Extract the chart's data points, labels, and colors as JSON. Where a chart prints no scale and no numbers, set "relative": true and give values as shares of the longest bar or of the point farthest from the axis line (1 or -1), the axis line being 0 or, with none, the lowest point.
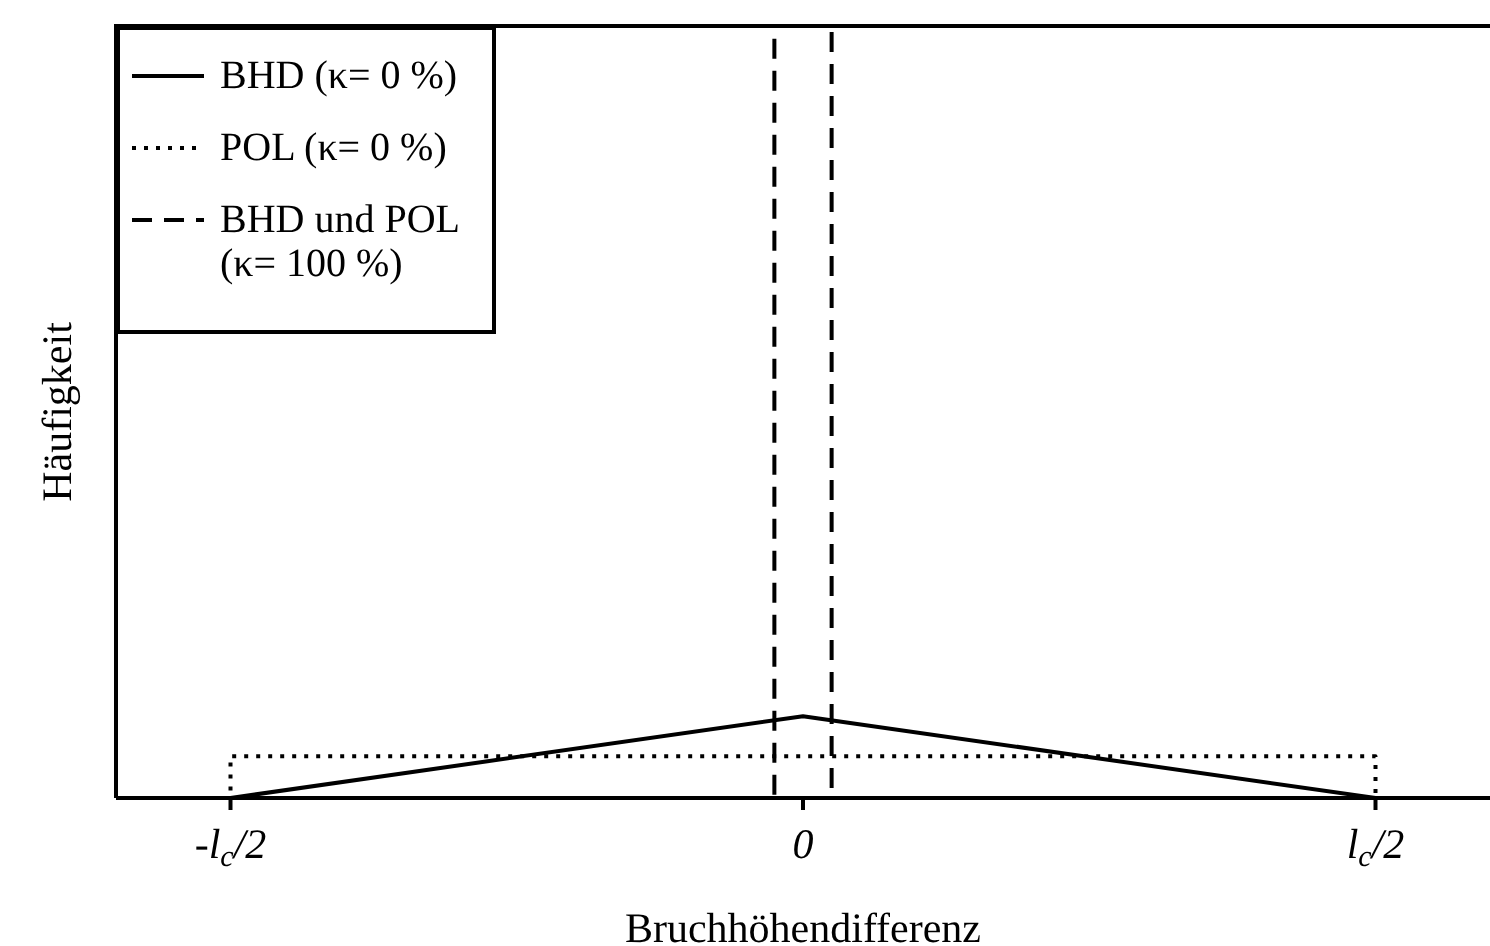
{
  "chart_data": {
    "type": "line",
    "relative": true,
    "xlabel": "Bruchhöhendifferenz",
    "ylabel": "Häufigkeit",
    "categories": [
      null,
      null,
      null,
      null,
      "-l$_{c}$/2",
      null,
      null,
      null,
      null,
      null,
      null,
      null,
      null,
      null,
      null,
      null,
      null,
      null,
      null,
      null,
      null,
      null,
      null,
      null,
      "0",
      null,
      null,
      null,
      null,
      null,
      null,
      null,
      null,
      null,
      null,
      null,
      null,
      null,
      null,
      null,
      null,
      null,
      null,
      null,
      "l$_{c}$/2",
      null,
      null,
      null,
      null
    ],
    "series": [
      {
        "name": "BHD (κ= 0 %)",
        "color": "#000000",
        "line_style": "solid",
        "values": [
          null,
          null,
          null,
          null,
          0,
          null,
          null,
          null,
          null,
          null,
          null,
          null,
          null,
          null,
          null,
          null,
          null,
          null,
          null,
          null,
          null,
          null,
          null,
          null,
          0.106,
          null,
          null,
          null,
          null,
          null,
          null,
          null,
          null,
          null,
          null,
          null,
          null,
          null,
          null,
          null,
          null,
          null,
          null,
          null,
          0,
          null,
          null,
          null,
          null
        ]
      },
      {
        "name": "POL (κ= 0 %)",
        "color": "#000000",
        "type": "step",
        "line_style": "dotted",
        "values": [
          null,
          null,
          null,
          0,
          0.054,
          null,
          null,
          null,
          null,
          null,
          null,
          null,
          null,
          null,
          null,
          null,
          null,
          null,
          null,
          null,
          null,
          null,
          null,
          null,
          null,
          null,
          null,
          null,
          null,
          null,
          null,
          null,
          null,
          null,
          null,
          null,
          null,
          null,
          null,
          null,
          null,
          null,
          null,
          null,
          0,
          null,
          null,
          null,
          null
        ]
      },
      {
        "name": "BHD und POL (κ= 100 %)",
        "color": "#000000",
        "type": "step",
        "line_style": "dashed",
        "values": [
          null,
          null,
          null,
          null,
          null,
          null,
          null,
          null,
          null,
          null,
          null,
          null,
          null,
          null,
          null,
          null,
          null,
          null,
          null,
          null,
          null,
          null,
          0,
          1,
          null,
          0,
          null,
          null,
          null,
          null,
          null,
          null,
          null,
          null,
          null,
          null,
          null,
          null,
          null,
          null,
          null,
          null,
          null,
          null,
          null,
          null,
          null,
          null,
          null
        ]
      }
    ],
    "legend": "top left",
    "marker": "none",
    "grid": false
  }
}
